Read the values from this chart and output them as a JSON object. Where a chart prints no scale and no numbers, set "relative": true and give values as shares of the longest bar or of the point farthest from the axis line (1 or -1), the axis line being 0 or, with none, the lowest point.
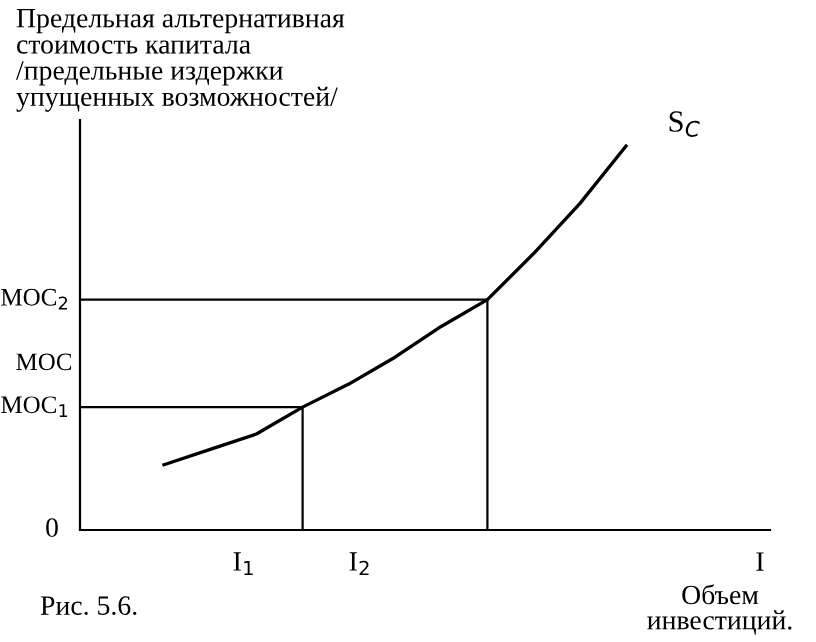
{
  "chart_data": {
    "type": "line",
    "relative": true,
    "title": "Предельная альтернативная\nстоимость капитала\n/предельные издержки\nупущенных возможностей/",
    "ylabel": "MOC",
    "xlabel": "I",
    "categories": [
      null,
      null,
      null,
      null,
      null,
      null,
      null,
      null,
      null,
      null,
      null
    ],
    "series": [
      {
        "name": "S$_{C}$",
        "color": "#000000",
        "values": [
          0.17,
          0.21,
          0.25,
          0.32,
          0.38,
          0.45,
          0.53,
          0.6,
          0.72,
          0.85,
          1.0
        ]
      }
    ],
    "ref_lines": [
      {
        "axis": "y",
        "value": 0.32,
        "label": "MOC$_{1}$",
        "color": "#000000"
      },
      {
        "axis": "y",
        "value": 0.6,
        "label": "MOC$_{2}$",
        "color": "#000000"
      }
    ],
    "annotations": [
      "0",
      "I$_{1}$",
      "I$_{2}$",
      "Объем\nинвестиций.",
      "Рис. 5.6."
    ]
  }
}
